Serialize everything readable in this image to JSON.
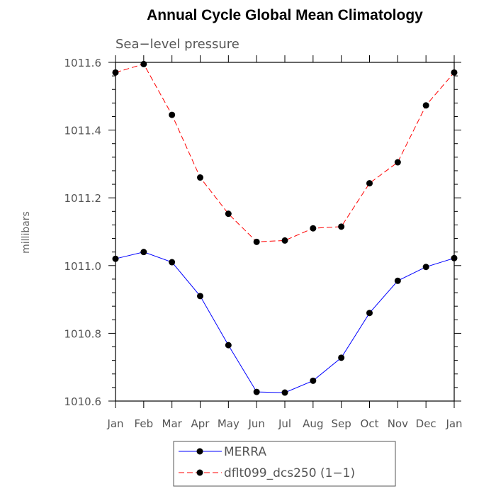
{
  "chart_data": {
    "type": "line",
    "title": "Annual Cycle Global Mean Climatology",
    "subtitle": "Sea−level pressure",
    "ylabel": "millibars",
    "xlabel": "",
    "categories": [
      "Jan",
      "Feb",
      "Mar",
      "Apr",
      "May",
      "Jun",
      "Jul",
      "Aug",
      "Sep",
      "Oct",
      "Nov",
      "Dec",
      "Jan"
    ],
    "ylim": [
      1010.6,
      1011.6
    ],
    "yticks": [
      1010.6,
      1010.8,
      1011.0,
      1011.2,
      1011.4,
      1011.6
    ],
    "ytick_labels": [
      "1010.6",
      "1010.8",
      "1011.0",
      "1011.2",
      "1011.4",
      "1011.6"
    ],
    "grid": false,
    "legend_position": "bottom-center",
    "series": [
      {
        "name": "MERRA",
        "color": "#0000ff",
        "line_style": "solid",
        "marker": "circle",
        "values": [
          1011.02,
          1011.04,
          1011.01,
          1010.91,
          1010.765,
          1010.627,
          1010.625,
          1010.66,
          1010.728,
          1010.86,
          1010.955,
          1010.996,
          1011.022
        ]
      },
      {
        "name": "dflt099_dcs250 (1−1)",
        "color": "#ff0000",
        "line_style": "dashed",
        "marker": "circle",
        "values": [
          1011.57,
          1011.595,
          1011.445,
          1011.26,
          1011.153,
          1011.07,
          1011.074,
          1011.11,
          1011.115,
          1011.243,
          1011.305,
          1011.473,
          1011.57
        ]
      }
    ]
  }
}
